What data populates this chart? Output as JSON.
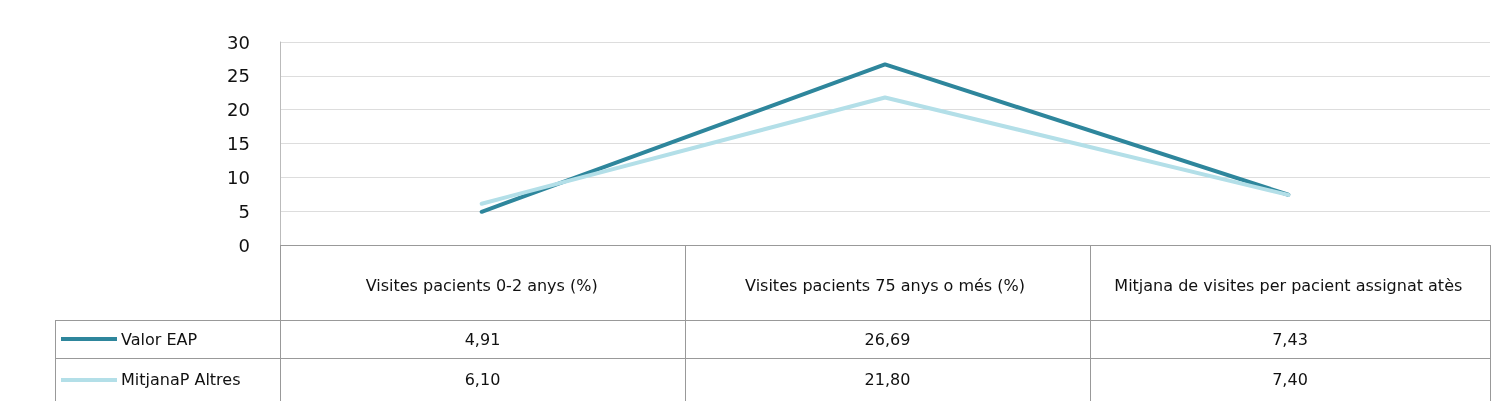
{
  "chart_data": {
    "type": "line",
    "categories": [
      "Visites pacients 0-2 anys (%)",
      "Visites pacients 75 anys o més (%)",
      "Mitjana de visites per pacient assignat atès"
    ],
    "series": [
      {
        "name": "Valor EAP",
        "color": "#2e869c",
        "values": [
          4.91,
          26.69,
          7.43
        ],
        "value_labels": [
          "4,91",
          "26,69",
          "7,43"
        ]
      },
      {
        "name": "MitjanaP Altres",
        "color": "#b3dfe8",
        "values": [
          6.1,
          21.8,
          7.4
        ],
        "value_labels": [
          "6,10",
          "21,80",
          "7,40"
        ]
      }
    ],
    "ylim": [
      0,
      30
    ],
    "yticks": [
      0,
      5,
      10,
      15,
      20,
      25,
      30
    ],
    "grid": "y",
    "legend": "bottom left",
    "marker": "none",
    "line_style": "solid"
  }
}
